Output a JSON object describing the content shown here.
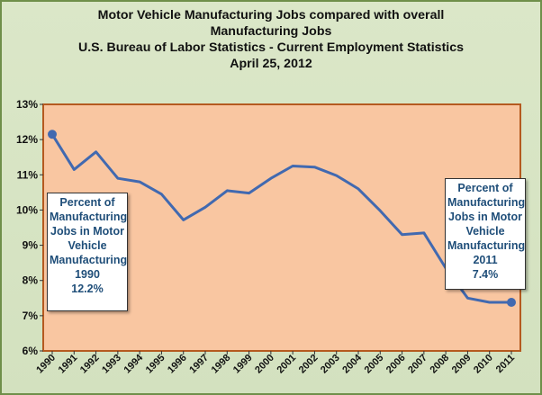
{
  "title_lines": [
    "Motor Vehicle Manufacturing Jobs compared with overall",
    "Manufacturing Jobs",
    "U.S. Bureau of Labor Statistics - Current Employment Statistics",
    "April 25, 2012"
  ],
  "callouts": {
    "left": [
      "Percent of",
      "Manufacturing",
      "Jobs in Motor",
      "Vehicle",
      "Manufacturing",
      "1990",
      "12.2%"
    ],
    "right": [
      "Percent of",
      "Manufacturing",
      "Jobs in Motor",
      "Vehicle",
      "Manufacturing",
      "2011",
      "7.4%"
    ]
  },
  "colors": {
    "plot_background": "#f9c6a1",
    "plot_border": "#b55a1f",
    "line": "#4169b0",
    "frame_background": "#d8e4c4",
    "callout_text": "#1f4e79"
  },
  "chart_data": {
    "type": "line",
    "title": "Motor Vehicle Manufacturing Jobs compared with overall Manufacturing Jobs",
    "x": [
      "1990",
      "1991",
      "1992",
      "1993",
      "1994",
      "1995",
      "1996",
      "1997",
      "1998",
      "1999",
      "2000",
      "2001",
      "2002",
      "2003",
      "2004",
      "2005",
      "2006",
      "2007",
      "2008",
      "2009",
      "2010",
      "2011"
    ],
    "y_tick_labels": [
      "6%",
      "7%",
      "8%",
      "9%",
      "10%",
      "11%",
      "12%",
      "13%"
    ],
    "ylim": [
      6,
      13
    ],
    "grid": false,
    "series": [
      {
        "values": [
          12.15,
          11.15,
          11.65,
          10.9,
          10.8,
          10.45,
          9.72,
          10.08,
          10.55,
          10.48,
          10.9,
          11.25,
          11.22,
          10.98,
          10.6,
          9.98,
          9.3,
          9.35,
          8.35,
          7.5,
          7.38,
          7.38
        ],
        "markers": [
          0,
          21
        ]
      }
    ]
  }
}
